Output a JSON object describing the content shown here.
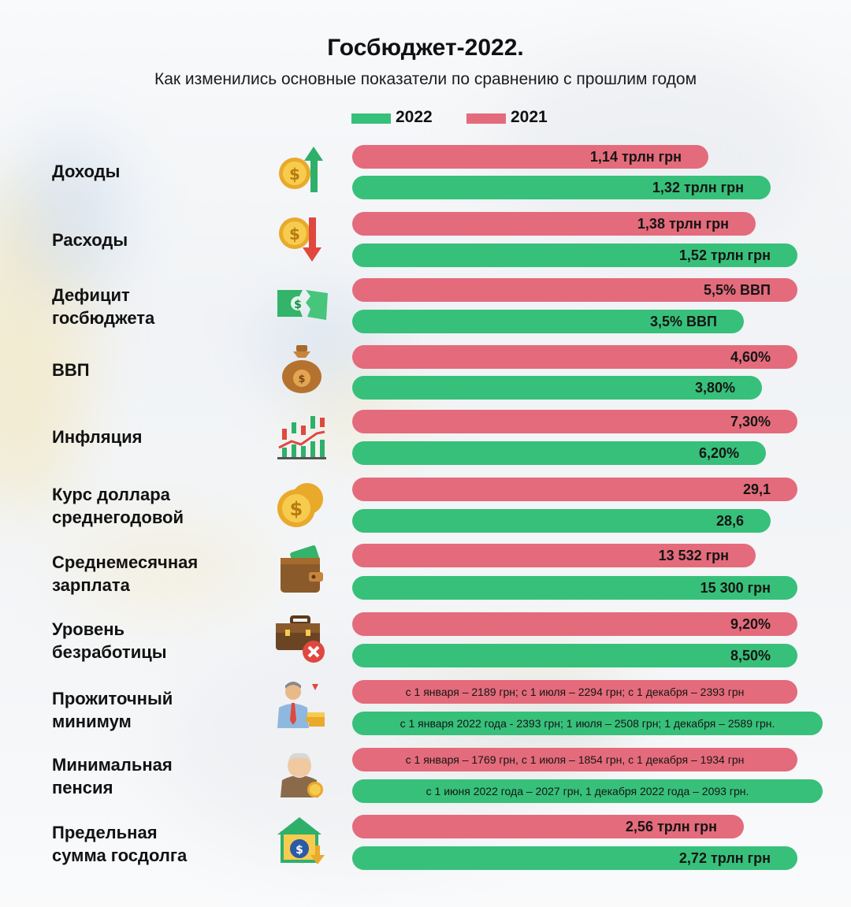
{
  "title": "Госбюджет-2022.",
  "subtitle": "Как изменились основные показатели по сравнению с прошлим годом",
  "colors": {
    "y2022": "#37c07a",
    "y2021": "#e46b7b"
  },
  "legend": [
    {
      "label": "2022",
      "color": "#37c07a"
    },
    {
      "label": "2021",
      "color": "#e46b7b"
    }
  ],
  "chart_data": {
    "type": "bar",
    "orientation": "horizontal",
    "legend_position": "top",
    "series_names": [
      "2021",
      "2022"
    ],
    "rows": [
      {
        "label": [
          "Доходы"
        ],
        "icon": "coin-up-arrow-icon",
        "values": {
          "2021": 1.14,
          "2022": 1.32
        },
        "labels": {
          "2021": "1,14 трлн грн",
          "2022": "1,32 трлн грн"
        }
      },
      {
        "label": [
          "Расходы"
        ],
        "icon": "coin-down-arrow-icon",
        "values": {
          "2021": 1.38,
          "2022": 1.52
        },
        "labels": {
          "2021": "1,38 трлн грн",
          "2022": "1,52 трлн грн"
        }
      },
      {
        "label": [
          "Дефицит",
          "госбюджета"
        ],
        "icon": "torn-banknote-icon",
        "values": {
          "2021": 5.5,
          "2022": 3.5
        },
        "labels": {
          "2021": "5,5% ВВП",
          "2022": "3,5% ВВП"
        }
      },
      {
        "label": [
          "ВВП"
        ],
        "icon": "money-bag-icon",
        "values": {
          "2021": 4.6,
          "2022": 3.8
        },
        "labels": {
          "2021": "4,60%",
          "2022": "3,80%"
        }
      },
      {
        "label": [
          "Инфляция"
        ],
        "icon": "candlestick-chart-icon",
        "values": {
          "2021": 7.3,
          "2022": 6.2
        },
        "labels": {
          "2021": "7,30%",
          "2022": "6,20%"
        }
      },
      {
        "label": [
          "Курс доллара",
          "среднегодовой"
        ],
        "icon": "dollar-coins-icon",
        "values": {
          "2021": 29.1,
          "2022": 28.6
        },
        "labels": {
          "2021": "29,1",
          "2022": "28,6"
        }
      },
      {
        "label": [
          "Среднемесячная",
          "зарплата"
        ],
        "icon": "wallet-icon",
        "values": {
          "2021": 13532,
          "2022": 15300
        },
        "labels": {
          "2021": "13 532 грн",
          "2022": "15 300 грн"
        }
      },
      {
        "label": [
          "Уровень",
          "безработицы"
        ],
        "icon": "briefcase-cross-icon",
        "values": {
          "2021": 9.2,
          "2022": 8.5
        },
        "labels": {
          "2021": "9,20%",
          "2022": "8,50%"
        }
      },
      {
        "label": [
          "Прожиточный",
          "минимум"
        ],
        "icon": "man-coins-icon",
        "values": {
          "2021": null,
          "2022": null
        },
        "labels": {
          "2021": "с 1 января – 2189 грн; с 1 июля – 2294 грн; с 1 декабря – 2393 грн",
          "2022": "с 1 января 2022 года - 2393 грн; 1 июля – 2508 грн; 1 декабря – 2589 грн."
        }
      },
      {
        "label": [
          "Минимальная",
          "пенсия"
        ],
        "icon": "elderly-man-icon",
        "values": {
          "2021": null,
          "2022": null
        },
        "labels": {
          "2021": "с 1 января – 1769 грн, с 1 июля – 1854 грн, с 1 декабря – 1934 грн",
          "2022": "с 1 июня 2022 года – 2027 грн, 1 декабря 2022 года – 2093 грн."
        }
      },
      {
        "label": [
          "Предельная",
          "сумма госдолга"
        ],
        "icon": "house-money-bag-icon",
        "values": {
          "2021": 2.56,
          "2022": 2.72
        },
        "labels": {
          "2021": "2,56 трлн грн",
          "2022": "2,72 трлн грн"
        }
      }
    ]
  }
}
